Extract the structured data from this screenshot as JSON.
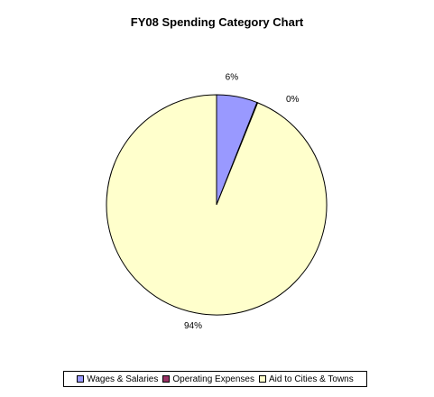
{
  "chart_data": {
    "type": "pie",
    "title": "FY08 Spending Category Chart",
    "categories": [
      "Wages & Salaries",
      "Operating Expenses",
      "Aid to Cities & Towns"
    ],
    "values": [
      6,
      0.1,
      93.9
    ],
    "labels": [
      "6%",
      "0%",
      "94%"
    ],
    "colors": [
      "#9999ff",
      "#993366",
      "#ffffcc"
    ],
    "legend_position": "bottom"
  }
}
